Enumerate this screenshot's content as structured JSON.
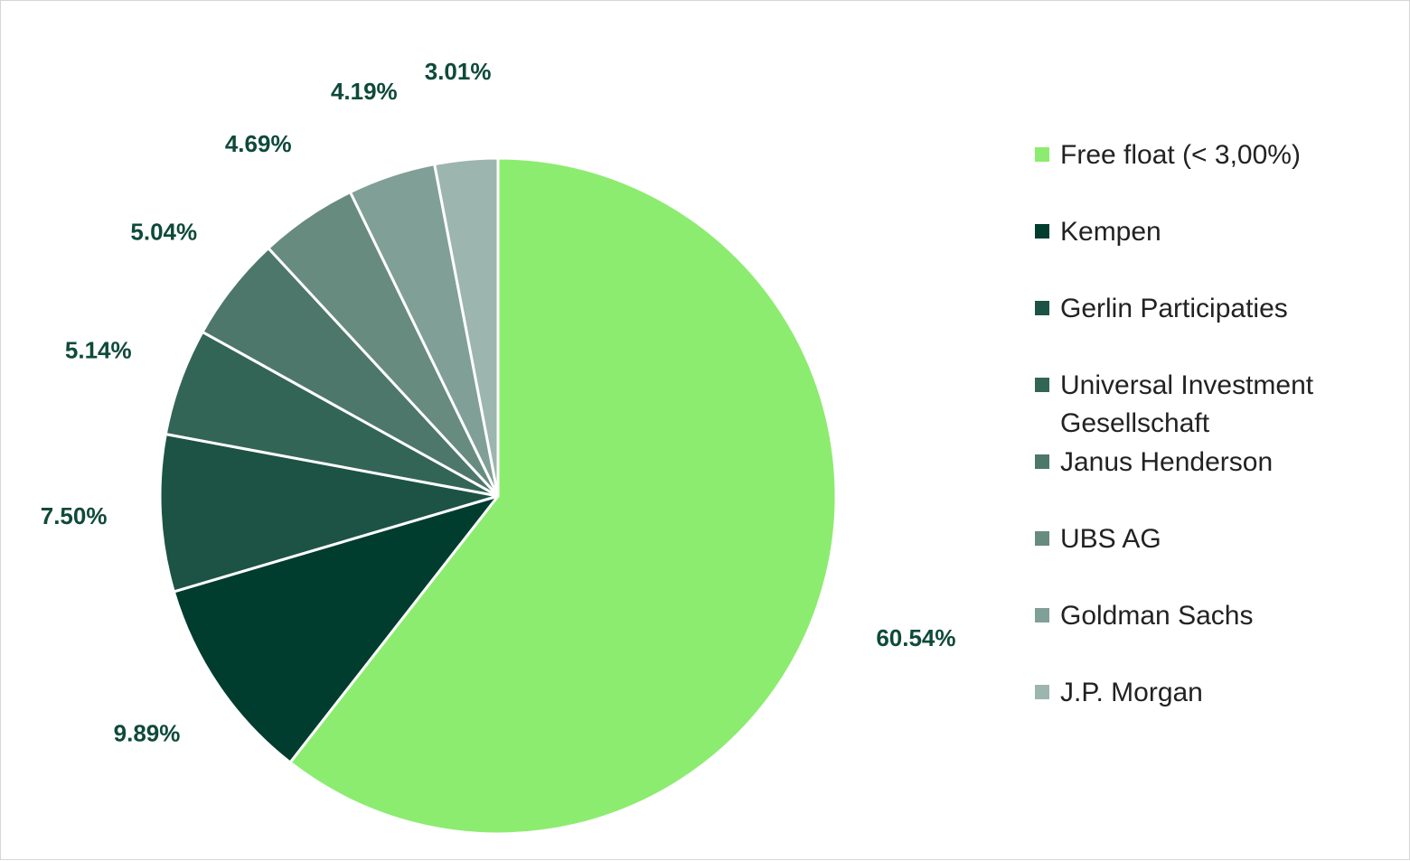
{
  "chart_data": {
    "type": "pie",
    "slices": [
      {
        "label": "Free float (< 3,00%)",
        "value": 60.54,
        "value_label": "60.54%",
        "color": "#8cec6f"
      },
      {
        "label": "Kempen",
        "value": 9.89,
        "value_label": "9.89%",
        "color": "#003d2e"
      },
      {
        "label": "Gerlin Participaties",
        "value": 7.5,
        "value_label": "7.50%",
        "color": "#1c5344"
      },
      {
        "label": "Universal Investment Gesellschaft",
        "value": 5.14,
        "value_label": "5.14%",
        "color": "#336556"
      },
      {
        "label": "Janus Henderson",
        "value": 5.04,
        "value_label": "5.04%",
        "color": "#4d776a"
      },
      {
        "label": "UBS AG",
        "value": 4.69,
        "value_label": "4.69%",
        "color": "#678b7f"
      },
      {
        "label": "Goldman Sachs",
        "value": 4.19,
        "value_label": "4.19%",
        "color": "#809f96"
      },
      {
        "label": "J.P. Morgan",
        "value": 3.01,
        "value_label": "3.01%",
        "color": "#9db5af"
      }
    ],
    "label_color": "#0f4a3a",
    "legend_position": "right",
    "start": "12 o'clock",
    "direction": "clockwise"
  }
}
